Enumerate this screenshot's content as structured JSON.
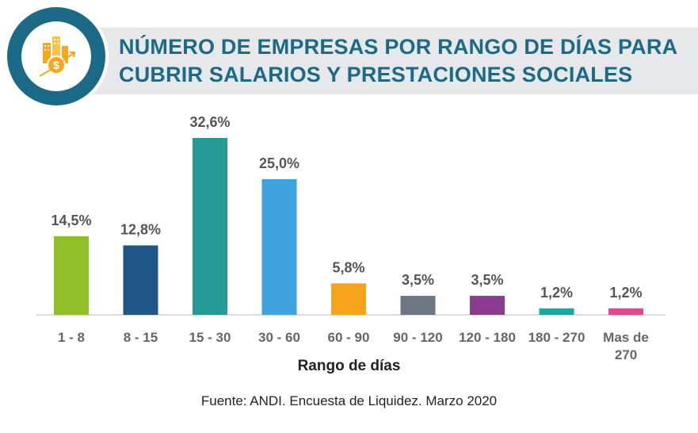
{
  "title_lines": [
    "NÚMERO DE EMPRESAS POR RANGO DE DÍAS PARA",
    "CUBRIR SALARIOS Y PRESTACIONES SOCIALES"
  ],
  "source": "Fuente: ANDI. Encuesta de Liquidez. Marzo 2020",
  "icon": "building-money-growth-icon",
  "colors": {
    "banner": "#e7e8ea",
    "title": "#1b6a87",
    "ring": "#1b6a87",
    "icon_accent": "#f3a91d"
  },
  "chart_data": {
    "type": "bar",
    "xlabel": "Rango de días",
    "ylabel": "",
    "ylim": [
      0,
      35
    ],
    "categories": [
      "1 - 8",
      "8 - 15",
      "15 - 30",
      "30 - 60",
      "60 - 90",
      "90 - 120",
      "120 - 180",
      "180 - 270",
      "Mas de 270"
    ],
    "values": [
      14.5,
      12.8,
      32.6,
      25.0,
      5.8,
      3.5,
      3.5,
      1.2,
      1.2
    ],
    "value_labels": [
      "14,5%",
      "12,8%",
      "32,6%",
      "25,0%",
      "5,8%",
      "3,5%",
      "3,5%",
      "1,2%",
      "1,2%"
    ],
    "bar_colors": [
      "#8fc028",
      "#1e5688",
      "#269a96",
      "#3ea2de",
      "#f6a51b",
      "#6b7787",
      "#8a3d8f",
      "#1aa99c",
      "#e7468e"
    ],
    "grid": false,
    "legend": "none"
  }
}
